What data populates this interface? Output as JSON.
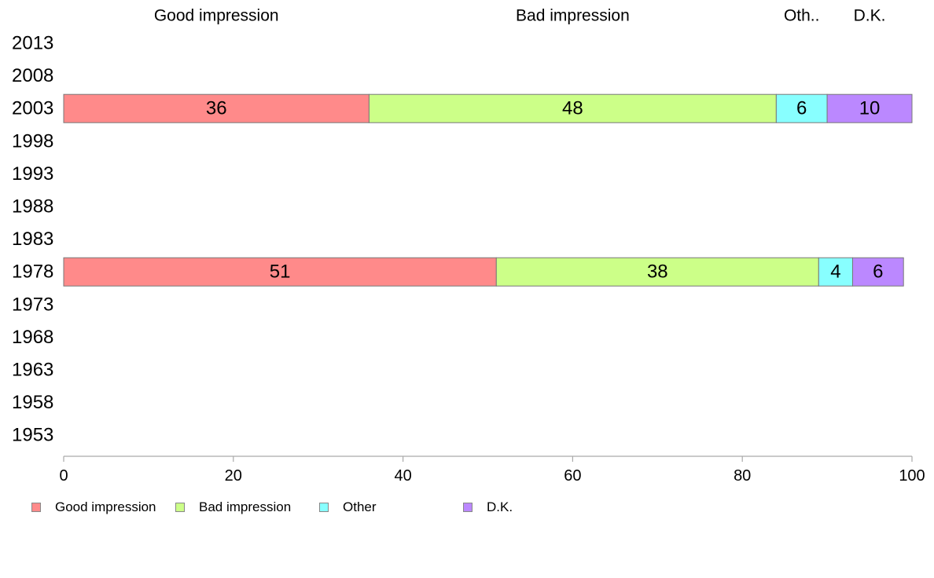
{
  "chart_data": {
    "type": "bar",
    "orientation": "horizontal",
    "stacked": true,
    "categories": [
      "2013",
      "2008",
      "2003",
      "1998",
      "1993",
      "1988",
      "1983",
      "1978",
      "1973",
      "1968",
      "1963",
      "1958",
      "1953"
    ],
    "series": [
      {
        "name": "Good impression",
        "color": "#ff8a8a",
        "values": [
          null,
          null,
          36,
          null,
          null,
          null,
          null,
          51,
          null,
          null,
          null,
          null,
          null
        ]
      },
      {
        "name": "Bad impression",
        "color": "#ccff88",
        "values": [
          null,
          null,
          48,
          null,
          null,
          null,
          null,
          38,
          null,
          null,
          null,
          null,
          null
        ]
      },
      {
        "name": "Other",
        "color": "#88ffff",
        "values": [
          null,
          null,
          6,
          null,
          null,
          null,
          null,
          4,
          null,
          null,
          null,
          null,
          null
        ]
      },
      {
        "name": "D.K.",
        "color": "#bb88ff",
        "values": [
          null,
          null,
          10,
          null,
          null,
          null,
          null,
          6,
          null,
          null,
          null,
          null,
          null
        ]
      }
    ],
    "column_headers": [
      "Good impression",
      "Bad impression",
      "Oth..",
      "D.K."
    ],
    "xlim": [
      0,
      100
    ],
    "xticks": [
      0,
      20,
      40,
      60,
      80,
      100
    ],
    "grid": false,
    "legend_position": "bottom-left"
  }
}
